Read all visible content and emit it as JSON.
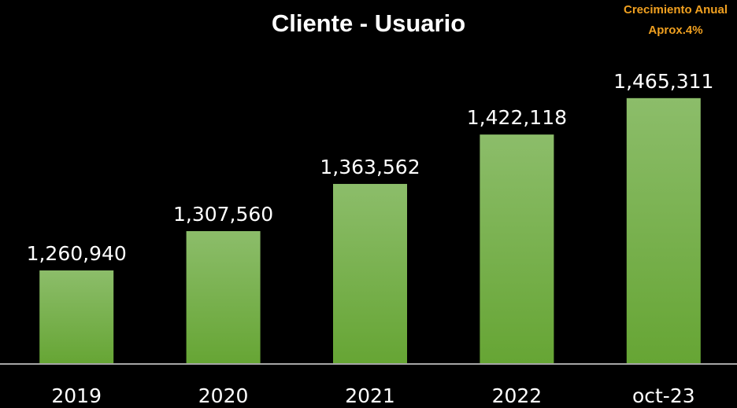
{
  "chart_data": {
    "type": "bar",
    "title": "Cliente - Usuario",
    "annotation": [
      "Crecimiento Anual",
      "Aprox.4%"
    ],
    "categories": [
      "2019",
      "2020",
      "2021",
      "2022",
      "oct-23"
    ],
    "values": [
      1260940,
      1307560,
      1363562,
      1422118,
      1465311
    ],
    "value_labels": [
      "1,260,940",
      "1,307,560",
      "1,363,562",
      "1,422,118",
      "1,465,311"
    ],
    "color": "#70ad47",
    "ylim": [
      1150000,
      1550000
    ],
    "grid": false
  }
}
